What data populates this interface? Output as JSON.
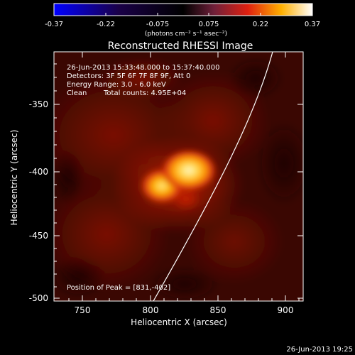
{
  "colorbar": {
    "ticks": [
      "-0.37",
      "-0.22",
      "-0.075",
      "0.075",
      "0.22",
      "0.37"
    ],
    "unit_label": "(photons cm⁻² s⁻¹ asec⁻²)"
  },
  "title": "Reconstructed RHESSI Image",
  "info": {
    "time_range": "26-Jun-2013 15:33:48.000 to 15:37:40.000",
    "detectors": "Detectors: 3F 5F 6F 7F 8F 9F, Att 0",
    "energy": "Energy Range: 3.0 - 6.0 keV",
    "method": "Clean",
    "total_counts": "Total counts: 4.95E+04",
    "peak": "Position of Peak = [831,-402]"
  },
  "axes": {
    "xlabel": "Heliocentric X (arcsec)",
    "ylabel": "Heliocentric Y (arcsec)",
    "xticks": [
      "750",
      "800",
      "850",
      "900"
    ],
    "yticks": [
      "-350",
      "-400",
      "-450",
      "-500"
    ]
  },
  "footer_timestamp": "26-Jun-2013 19:25",
  "colors": {
    "background": "#000000",
    "limb": "#ffffff"
  }
}
